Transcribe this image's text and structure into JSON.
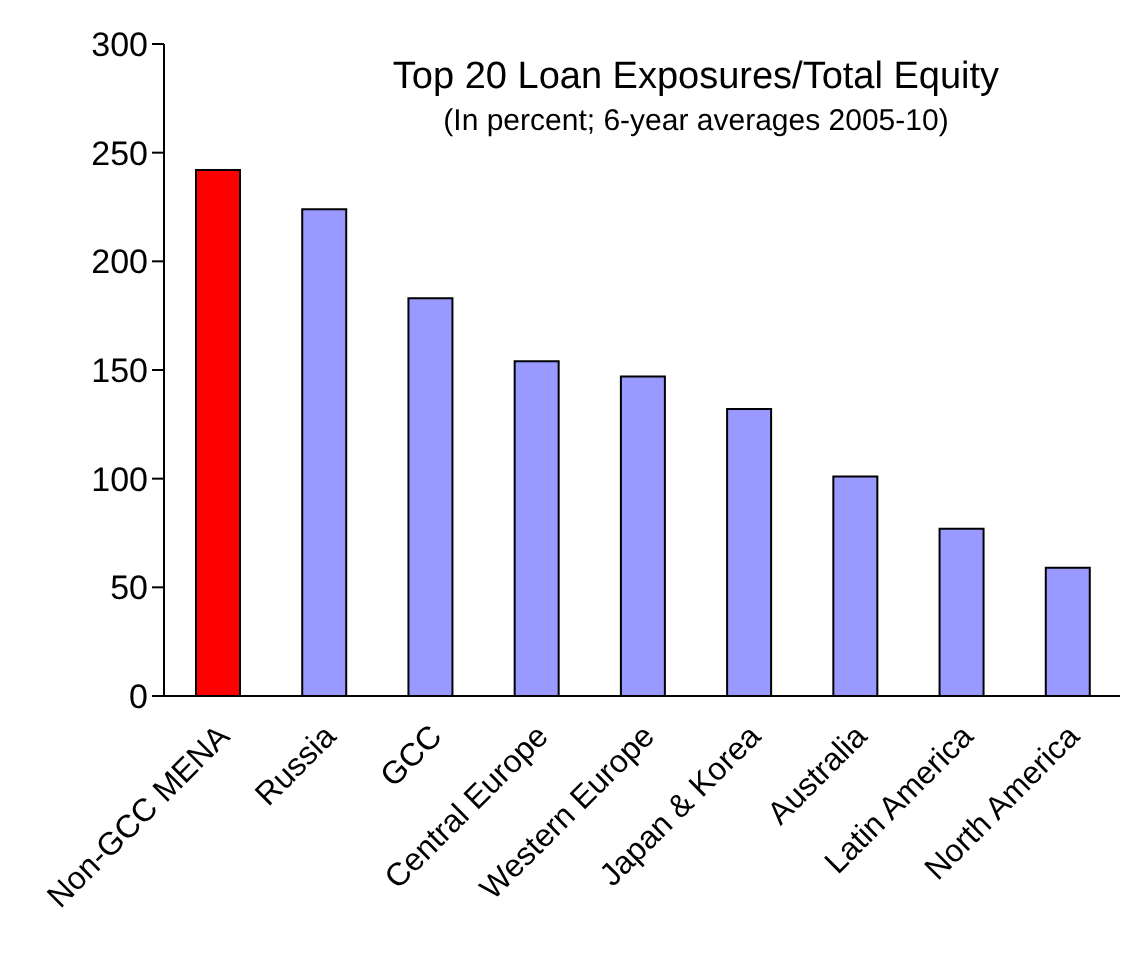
{
  "chart_data": {
    "type": "bar",
    "title": "Top 20 Loan Exposures/Total Equity",
    "subtitle": "(In percent; 6-year averages 2005-10)",
    "categories": [
      "Non-GCC MENA",
      "Russia",
      "GCC",
      "Central Europe",
      "Western Europe",
      "Japan & Korea",
      "Australia",
      "Latin America",
      "North America"
    ],
    "values": [
      242,
      224,
      183,
      154,
      147,
      132,
      101,
      77,
      59
    ],
    "colors": [
      "#ff0000",
      "#9999ff",
      "#9999ff",
      "#9999ff",
      "#9999ff",
      "#9999ff",
      "#9999ff",
      "#9999ff",
      "#9999ff"
    ],
    "ylim": [
      0,
      300
    ],
    "yticks": [
      0,
      50,
      100,
      150,
      200,
      250,
      300
    ],
    "grid": false
  }
}
